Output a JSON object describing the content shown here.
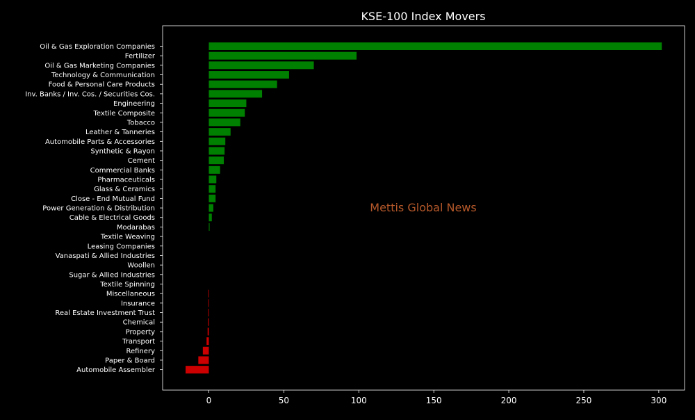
{
  "chart_data": {
    "type": "bar",
    "orientation": "horizontal",
    "title": "KSE-100 Index Movers",
    "xlabel": "",
    "ylabel": "",
    "xlim": [
      -30.8,
      317.2
    ],
    "xticks": [
      0,
      50,
      100,
      150,
      200,
      250,
      300
    ],
    "grid": false,
    "categories": [
      "Oil & Gas Exploration Companies",
      "Fertilizer",
      "Oil & Gas Marketing Companies",
      "Technology & Communication",
      "Food & Personal Care Products",
      "Inv. Banks / Inv. Cos. / Securities Cos.",
      "Engineering",
      "Textile Composite",
      "Tobacco",
      "Leather & Tanneries",
      "Automobile Parts & Accessories",
      "Synthetic & Rayon",
      "Cement",
      "Commercial Banks",
      "Pharmaceuticals",
      "Glass & Ceramics",
      "Close - End Mutual Fund",
      "Power Generation & Distribution",
      "Cable & Electrical Goods",
      "Modarabas",
      "Textile Weaving",
      "Leasing Companies",
      "Vanaspati & Allied Industries",
      "Woollen",
      "Sugar & Allied Industries",
      "Textile Spinning",
      "Miscellaneous",
      "Insurance",
      "Real Estate Investment Trust",
      "Chemical",
      "Property",
      "Transport",
      "Refinery",
      "Paper & Board",
      "Automobile Assembler"
    ],
    "values": [
      302,
      98.5,
      70,
      53.5,
      45.5,
      35.5,
      25,
      24,
      21,
      14.5,
      11,
      10.5,
      10,
      7.5,
      5,
      4.5,
      4.5,
      3,
      2,
      0.5,
      0,
      0,
      0,
      0,
      0,
      0,
      -0.3,
      -0.3,
      -0.4,
      -0.5,
      -0.8,
      -1.5,
      -4,
      -7,
      -15.5
    ],
    "colors": {
      "positive": "#008000",
      "negative": "#cc0000",
      "background": "#000000",
      "axes": "#ffffff",
      "text": "#ffffff"
    },
    "annotations": [
      {
        "text": "Mettis Global News",
        "color": "#b5582a"
      }
    ]
  }
}
